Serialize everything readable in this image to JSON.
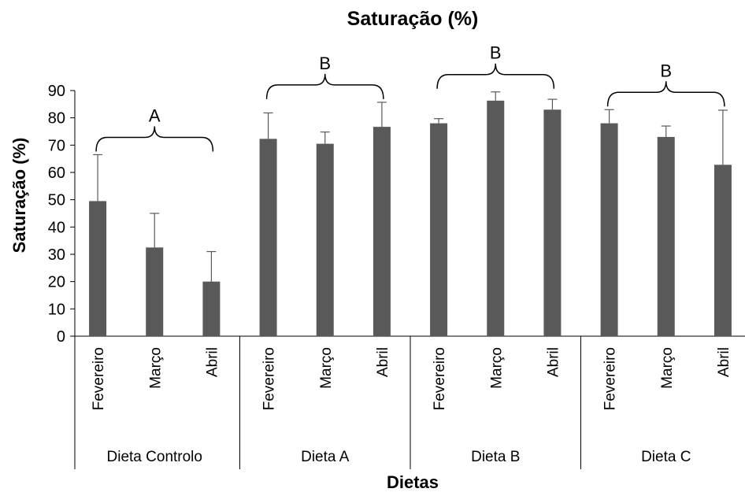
{
  "chart_data": {
    "type": "bar",
    "title": "Saturação (%)",
    "xlabel": "Dietas",
    "ylabel": "Saturação (%)",
    "ylim": [
      0,
      90
    ],
    "yticks": [
      0,
      10,
      20,
      30,
      40,
      50,
      60,
      70,
      80,
      90
    ],
    "grid": false,
    "legend": "none",
    "bar_color": "#595959",
    "groups": [
      {
        "name": "Dieta Controlo",
        "annotation": "A",
        "categories": [
          "Fevereiro",
          "Março",
          "Abril"
        ],
        "values": [
          49.5,
          32.5,
          20
        ],
        "errors": [
          17,
          12.5,
          11
        ]
      },
      {
        "name": "Dieta A",
        "annotation": "B",
        "categories": [
          "Fevereiro",
          "Março",
          "Abril"
        ],
        "values": [
          72.3,
          70.5,
          76.7
        ],
        "errors": [
          9.5,
          4.3,
          9
        ]
      },
      {
        "name": "Dieta B",
        "annotation": "B",
        "categories": [
          "Fevereiro",
          "Março",
          "Abril"
        ],
        "values": [
          78,
          86.3,
          83
        ],
        "errors": [
          1.7,
          3.2,
          3.8
        ]
      },
      {
        "name": "Dieta C",
        "annotation": "B",
        "categories": [
          "Fevereiro",
          "Março",
          "Abril"
        ],
        "values": [
          78,
          73,
          62.8
        ],
        "errors": [
          5,
          4,
          20
        ]
      }
    ]
  }
}
